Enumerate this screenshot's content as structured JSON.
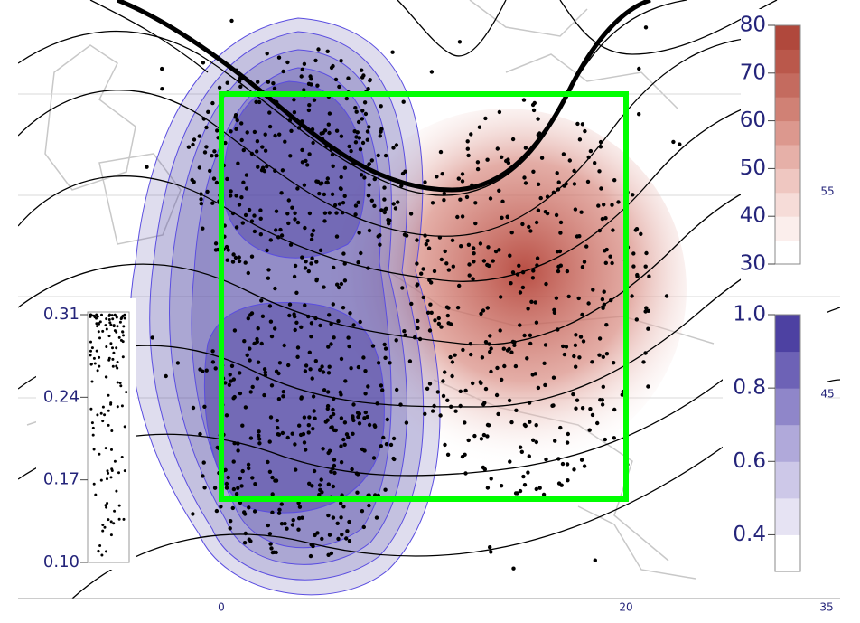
{
  "map": {
    "red_colorbar": {
      "lim": [
        30,
        80
      ],
      "ticks": [
        30,
        40,
        50,
        60,
        70,
        80
      ],
      "colors": [
        "#ffffff",
        "#fbeeec",
        "#f6dcd8",
        "#efc7c1",
        "#e6b0a8",
        "#dc988e",
        "#d08175",
        "#c46b5f",
        "#ba584b",
        "#b0483c"
      ]
    },
    "blue_colorbar": {
      "lim": [
        0.3,
        1.0
      ],
      "ticks": [
        {
          "value": 0.4,
          "label": "0.4"
        },
        {
          "value": 0.6,
          "label": "0.6"
        },
        {
          "value": 0.8,
          "label": "0.8"
        },
        {
          "value": 1.0,
          "label": "1.0"
        }
      ],
      "colors": [
        "#ffffff",
        "#e6e3f3",
        "#cdc8e8",
        "#b0a9da",
        "#8f86c9",
        "#6d62b6",
        "#4d41a2"
      ]
    },
    "stipple_key": {
      "lim": [
        0.1,
        0.31
      ],
      "ticks": [
        {
          "value": 0.1,
          "label": "0.10"
        },
        0.17,
        0.24,
        0.31
      ]
    },
    "lon_labels": [
      0,
      20,
      35
    ],
    "lat_labels": [
      55,
      45
    ]
  }
}
